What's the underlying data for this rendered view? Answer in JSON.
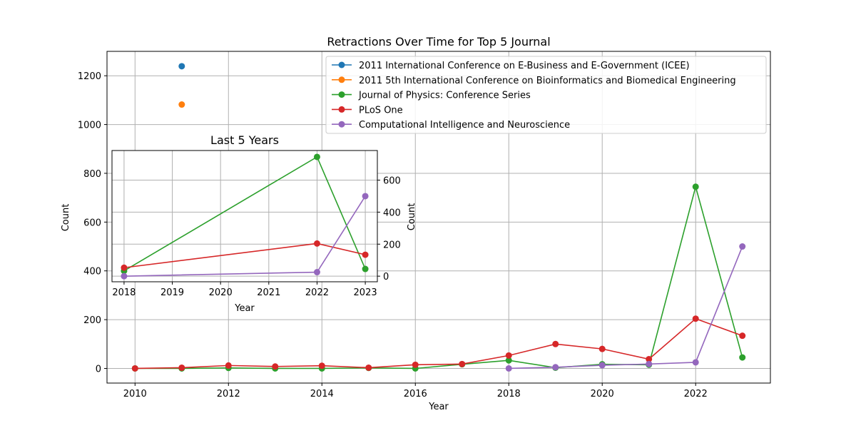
{
  "chart_data": [
    {
      "type": "line",
      "title": "Retractions Over Time for Top 5 Journal",
      "xlabel": "Year",
      "ylabel": "Count",
      "xlim": [
        2009.4,
        2023.6
      ],
      "ylim": [
        -60,
        1300
      ],
      "xticks": [
        2010,
        2012,
        2014,
        2016,
        2018,
        2020,
        2022
      ],
      "yticks": [
        0,
        200,
        400,
        600,
        800,
        1000,
        1200
      ],
      "grid": true,
      "legend_position": "upper right",
      "series": [
        {
          "name": "2011 International Conference on E-Business and E-Government (ICEE)",
          "color": "#1f77b4",
          "x": [
            2011
          ],
          "y": [
            1239
          ]
        },
        {
          "name": "2011 5th International Conference on Bioinformatics and Biomedical Engineering",
          "color": "#ff7f0e",
          "x": [
            2011
          ],
          "y": [
            1082
          ]
        },
        {
          "name": "Journal of Physics: Conference Series",
          "color": "#2ca02c",
          "x": [
            2010,
            2011,
            2012,
            2013,
            2014,
            2015,
            2016,
            2017,
            2018,
            2019,
            2020,
            2021,
            2022,
            2023
          ],
          "y": [
            0,
            0,
            2,
            0,
            0,
            2,
            0,
            17,
            33,
            3,
            17,
            15,
            745,
            45
          ]
        },
        {
          "name": "PLoS One",
          "color": "#d62728",
          "x": [
            2010,
            2011,
            2012,
            2013,
            2014,
            2015,
            2016,
            2017,
            2018,
            2019,
            2020,
            2021,
            2022,
            2023
          ],
          "y": [
            0,
            3,
            12,
            8,
            11,
            3,
            15,
            18,
            53,
            100,
            80,
            38,
            204,
            134
          ]
        },
        {
          "name": "Computational Intelligence and Neuroscience",
          "color": "#9467bd",
          "x": [
            2018,
            2019,
            2020,
            2021,
            2022,
            2023
          ],
          "y": [
            0,
            5,
            13,
            18,
            25,
            500
          ]
        }
      ]
    },
    {
      "type": "line",
      "title": "Last 5 Years",
      "xlabel": "Year",
      "ylabel": "Count",
      "xlim": [
        2017.75,
        2023.25
      ],
      "ylim": [
        -35,
        785
      ],
      "xticks": [
        2018,
        2019,
        2020,
        2021,
        2022,
        2023
      ],
      "yticks": [
        0,
        200,
        400,
        600
      ],
      "grid": true,
      "series": [
        {
          "name": "Journal of Physics: Conference Series",
          "color": "#2ca02c",
          "x": [
            2018,
            2022,
            2023
          ],
          "y": [
            33,
            745,
            45
          ]
        },
        {
          "name": "PLoS One",
          "color": "#d62728",
          "x": [
            2018,
            2022,
            2023
          ],
          "y": [
            53,
            204,
            134
          ]
        },
        {
          "name": "Computational Intelligence and Neuroscience",
          "color": "#9467bd",
          "x": [
            2018,
            2022,
            2023
          ],
          "y": [
            0,
            25,
            500
          ]
        }
      ]
    }
  ]
}
